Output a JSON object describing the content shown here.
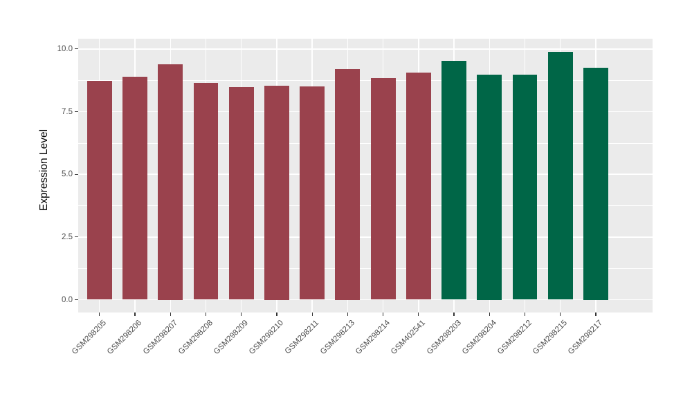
{
  "chart_data": {
    "type": "bar",
    "title": "",
    "xlabel": "",
    "ylabel": "Expression Level",
    "categories": [
      "GSM298205",
      "GSM298206",
      "GSM298207",
      "GSM298208",
      "GSM298209",
      "GSM298210",
      "GSM298211",
      "GSM298213",
      "GSM298214",
      "GSM402541",
      "GSM298203",
      "GSM298204",
      "GSM298212",
      "GSM298215",
      "GSM298217"
    ],
    "values": [
      8.74,
      8.88,
      9.4,
      8.65,
      8.47,
      8.53,
      8.5,
      9.2,
      8.84,
      9.05,
      9.52,
      8.97,
      8.98,
      9.89,
      9.26
    ],
    "groups": [
      "red",
      "red",
      "red",
      "red",
      "red",
      "red",
      "red",
      "red",
      "red",
      "red",
      "green",
      "green",
      "green",
      "green",
      "green"
    ],
    "group_colors": {
      "red": "#9A424D",
      "green": "#006647"
    },
    "y_tick_labels": [
      "0.0",
      "2.5",
      "5.0",
      "7.5",
      "10.0"
    ],
    "y_tick_values": [
      0,
      2.5,
      5,
      7.5,
      10
    ],
    "y_minor_values": [
      1.25,
      3.75,
      6.25,
      8.75
    ],
    "ylim": [
      -0.51,
      10.41
    ],
    "x_expand": 0.6,
    "bar_width_frac": 0.7,
    "legend": "none",
    "grid": "on",
    "colors": {
      "figure_bg": "#FFFFFF",
      "panel_bg": "#EBEBEB",
      "grid": "#FFFFFF",
      "tick_mark": "#333333",
      "tick_label": "#4D4D4D",
      "axis_title": "#000000"
    }
  }
}
